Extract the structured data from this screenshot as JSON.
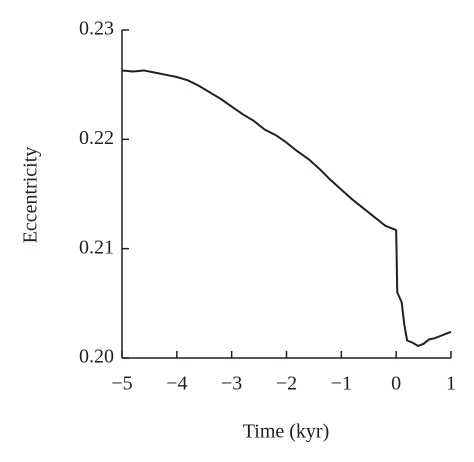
{
  "chart_data": {
    "type": "line",
    "x_label": "Time (kyr)",
    "y_label": "Eccentricity",
    "x": [
      -5,
      -4.8,
      -4.6,
      -4.4,
      -4.2,
      -4,
      -3.8,
      -3.6,
      -3.4,
      -3.2,
      -3,
      -2.8,
      -2.6,
      -2.4,
      -2.2,
      -2,
      -1.8,
      -1.6,
      -1.4,
      -1.2,
      -1,
      -0.8,
      -0.6,
      -0.4,
      -0.2,
      -0.1,
      0,
      0.02,
      0.1,
      0.15,
      0.2,
      0.3,
      0.4,
      0.5,
      0.6,
      0.7,
      0.8,
      0.9,
      1
    ],
    "series": [
      {
        "name": "Eccentricity",
        "color": "#231f20",
        "values": [
          0.2263,
          0.2262,
          0.2263,
          0.2261,
          0.2259,
          0.2257,
          0.2254,
          0.2249,
          0.2243,
          0.2237,
          0.223,
          0.2223,
          0.2217,
          0.2209,
          0.2204,
          0.2197,
          0.2189,
          0.2182,
          0.2173,
          0.2163,
          0.2154,
          0.2145,
          0.2137,
          0.2129,
          0.2121,
          0.2119,
          0.2117,
          0.206,
          0.2051,
          0.203,
          0.2016,
          0.2014,
          0.2011,
          0.2013,
          0.2017,
          0.2018,
          0.202,
          0.2022,
          0.2024
        ]
      }
    ],
    "xlim": [
      -5,
      1
    ],
    "xticks": [
      {
        "value": -5,
        "label": "−5"
      },
      {
        "value": -4,
        "label": "−4"
      },
      {
        "value": -3,
        "label": "−3"
      },
      {
        "value": -2,
        "label": "−2"
      },
      {
        "value": -1,
        "label": "−1"
      },
      0,
      1
    ],
    "ylim": [
      0.2,
      0.23
    ],
    "yticks": [
      {
        "value": 0.2,
        "label": "0.20"
      },
      0.21,
      0.22,
      0.23
    ]
  }
}
